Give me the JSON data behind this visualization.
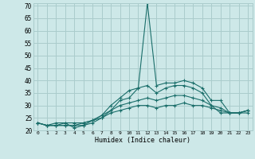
{
  "xlabel": "Humidex (Indice chaleur)",
  "bg_color": "#cde8e8",
  "grid_color": "#aacccc",
  "line_color": "#1a6e6a",
  "xlim": [
    -0.5,
    23.5
  ],
  "ylim": [
    20,
    71
  ],
  "yticks": [
    20,
    25,
    30,
    35,
    40,
    45,
    50,
    55,
    60,
    65,
    70
  ],
  "xtick_labels": [
    "0",
    "1",
    "2",
    "3",
    "4",
    "5",
    "6",
    "7",
    "8",
    "9",
    "10",
    "11",
    "12",
    "13",
    "14",
    "15",
    "16",
    "17",
    "18",
    "19",
    "20",
    "21",
    "22",
    "23"
  ],
  "series": [
    [
      23,
      22,
      23,
      23,
      21,
      22,
      23,
      25,
      28,
      32,
      33,
      37,
      71,
      38,
      39,
      39,
      40,
      39,
      37,
      32,
      32,
      27,
      27,
      28
    ],
    [
      23,
      22,
      22,
      22,
      22,
      22,
      24,
      26,
      30,
      33,
      36,
      37,
      38,
      35,
      37,
      38,
      38,
      37,
      35,
      30,
      27,
      27,
      27,
      28
    ],
    [
      23,
      22,
      22,
      22,
      22,
      23,
      24,
      26,
      28,
      30,
      31,
      32,
      33,
      32,
      33,
      34,
      34,
      33,
      32,
      30,
      29,
      27,
      27,
      28
    ],
    [
      23,
      22,
      22,
      23,
      23,
      23,
      24,
      25,
      27,
      28,
      29,
      30,
      30,
      29,
      30,
      30,
      31,
      30,
      30,
      29,
      28,
      27,
      27,
      27
    ]
  ]
}
